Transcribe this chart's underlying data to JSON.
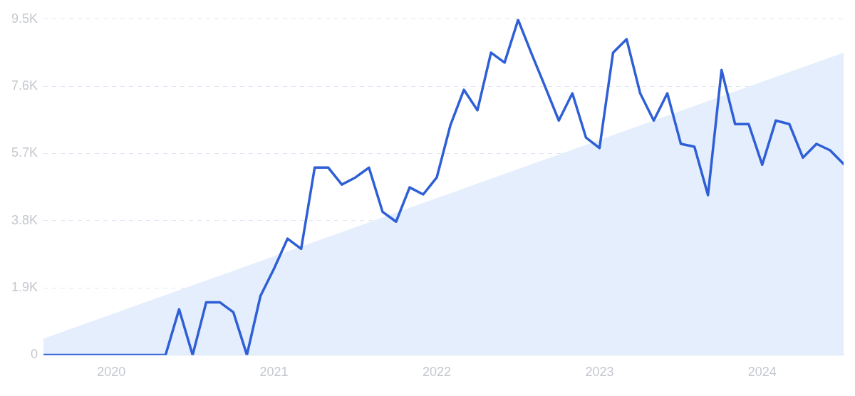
{
  "chart_data": {
    "type": "line",
    "x": [
      "2019-08",
      "2019-09",
      "2019-10",
      "2019-11",
      "2019-12",
      "2020-01",
      "2020-02",
      "2020-03",
      "2020-04",
      "2020-05",
      "2020-06",
      "2020-07",
      "2020-08",
      "2020-09",
      "2020-10",
      "2020-11",
      "2020-12",
      "2021-01",
      "2021-02",
      "2021-03",
      "2021-04",
      "2021-05",
      "2021-06",
      "2021-07",
      "2021-08",
      "2021-09",
      "2021-10",
      "2021-11",
      "2021-12",
      "2022-01",
      "2022-02",
      "2022-03",
      "2022-04",
      "2022-05",
      "2022-06",
      "2022-07",
      "2022-08",
      "2022-09",
      "2022-10",
      "2022-11",
      "2022-12",
      "2023-01",
      "2023-02",
      "2023-03",
      "2023-04",
      "2023-05",
      "2023-06",
      "2023-07",
      "2023-08",
      "2023-09",
      "2023-10",
      "2023-11",
      "2023-12",
      "2024-01",
      "2024-02",
      "2024-03",
      "2024-04",
      "2024-05",
      "2024-06",
      "2024-07"
    ],
    "series": [
      {
        "type": "area",
        "color": "#e4eefc",
        "x": [
          "2019-08",
          "2024-07"
        ],
        "values": [
          460,
          8550
        ]
      },
      {
        "color": "#2f5fd6",
        "values": [
          0,
          0,
          0,
          0,
          0,
          0,
          0,
          0,
          0,
          0,
          1290,
          0,
          1490,
          1490,
          1210,
          0,
          1670,
          2440,
          3290,
          3000,
          5300,
          5300,
          4820,
          5020,
          5300,
          4050,
          3770,
          4740,
          4540,
          5020,
          6490,
          7500,
          6920,
          8550,
          8270,
          9480,
          8510,
          7580,
          6630,
          7400,
          6150,
          5850,
          8550,
          8930,
          7400,
          6630,
          7400,
          5970,
          5890,
          4520,
          8060,
          6530,
          6530,
          5380,
          6630,
          6530,
          5580,
          5970,
          5790,
          5400
        ]
      }
    ],
    "xlim": [
      "2019-08",
      "2024-07"
    ],
    "xticks": [
      {
        "value": "2020-01",
        "label": "2020"
      },
      {
        "value": "2021-01",
        "label": "2021"
      },
      {
        "value": "2022-01",
        "label": "2022"
      },
      {
        "value": "2023-01",
        "label": "2023"
      },
      {
        "value": "2024-01",
        "label": "2024"
      }
    ],
    "ylim": [
      0,
      9500
    ],
    "yticks": [
      0,
      {
        "value": 1900,
        "label": "1.9K"
      },
      {
        "value": 3800,
        "label": "3.8K"
      },
      {
        "value": 5700,
        "label": "5.7K"
      },
      {
        "value": 7600,
        "label": "7.6K"
      },
      {
        "value": 9500,
        "label": "9.5K"
      }
    ],
    "grid": "y",
    "legend": false,
    "marker": "none",
    "line_style": "solid"
  }
}
